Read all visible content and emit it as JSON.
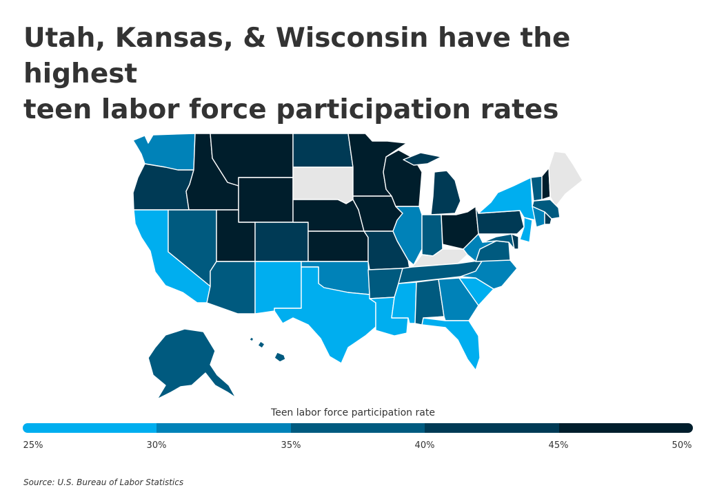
{
  "title_line1": "Utah, Kansas, & Wisconsin have the highest",
  "title_line2": "teen labor force participation rates",
  "legend": {
    "title": "Teen labor force participation rate",
    "ticks": [
      "25%",
      "30%",
      "35%",
      "40%",
      "45%",
      "50%"
    ],
    "colors": [
      "#00aeef",
      "#0082b8",
      "#005a7f",
      "#003a55",
      "#001e2c"
    ]
  },
  "source": "Source:  U.S. Bureau of Labor Statistics",
  "no_data_color": "#e6e6e6",
  "states": [
    {
      "abbr": "WA",
      "bin": 1
    },
    {
      "abbr": "OR",
      "bin": 3
    },
    {
      "abbr": "CA",
      "bin": 0
    },
    {
      "abbr": "ID",
      "bin": 4
    },
    {
      "abbr": "NV",
      "bin": 2
    },
    {
      "abbr": "MT",
      "bin": 4
    },
    {
      "abbr": "WY",
      "bin": 4
    },
    {
      "abbr": "UT",
      "bin": 4
    },
    {
      "abbr": "AZ",
      "bin": 2
    },
    {
      "abbr": "CO",
      "bin": 3
    },
    {
      "abbr": "NM",
      "bin": 0
    },
    {
      "abbr": "ND",
      "bin": 3
    },
    {
      "abbr": "SD",
      "bin": -1
    },
    {
      "abbr": "NE",
      "bin": 4
    },
    {
      "abbr": "KS",
      "bin": 4
    },
    {
      "abbr": "OK",
      "bin": 1
    },
    {
      "abbr": "TX",
      "bin": 0
    },
    {
      "abbr": "MN",
      "bin": 4
    },
    {
      "abbr": "IA",
      "bin": 4
    },
    {
      "abbr": "MO",
      "bin": 3
    },
    {
      "abbr": "AR",
      "bin": 2
    },
    {
      "abbr": "LA",
      "bin": 0
    },
    {
      "abbr": "WI",
      "bin": 4
    },
    {
      "abbr": "IL",
      "bin": 1
    },
    {
      "abbr": "MI",
      "bin": 3
    },
    {
      "abbr": "IN",
      "bin": 2
    },
    {
      "abbr": "OH",
      "bin": 4
    },
    {
      "abbr": "KY",
      "bin": -1
    },
    {
      "abbr": "TN",
      "bin": 2
    },
    {
      "abbr": "MS",
      "bin": 0
    },
    {
      "abbr": "AL",
      "bin": 2
    },
    {
      "abbr": "GA",
      "bin": 1
    },
    {
      "abbr": "FL",
      "bin": 0
    },
    {
      "abbr": "SC",
      "bin": 0
    },
    {
      "abbr": "NC",
      "bin": 1
    },
    {
      "abbr": "VA",
      "bin": 2
    },
    {
      "abbr": "WV",
      "bin": 1
    },
    {
      "abbr": "PA",
      "bin": 3
    },
    {
      "abbr": "NY",
      "bin": 0
    },
    {
      "abbr": "NJ",
      "bin": 0
    },
    {
      "abbr": "MD",
      "bin": 2
    },
    {
      "abbr": "DE",
      "bin": 3
    },
    {
      "abbr": "VT",
      "bin": 2
    },
    {
      "abbr": "NH",
      "bin": 4
    },
    {
      "abbr": "ME",
      "bin": -1
    },
    {
      "abbr": "MA",
      "bin": 2
    },
    {
      "abbr": "CT",
      "bin": 1
    },
    {
      "abbr": "RI",
      "bin": 3
    },
    {
      "abbr": "AK",
      "bin": 2
    },
    {
      "abbr": "HI",
      "bin": 2
    }
  ]
}
